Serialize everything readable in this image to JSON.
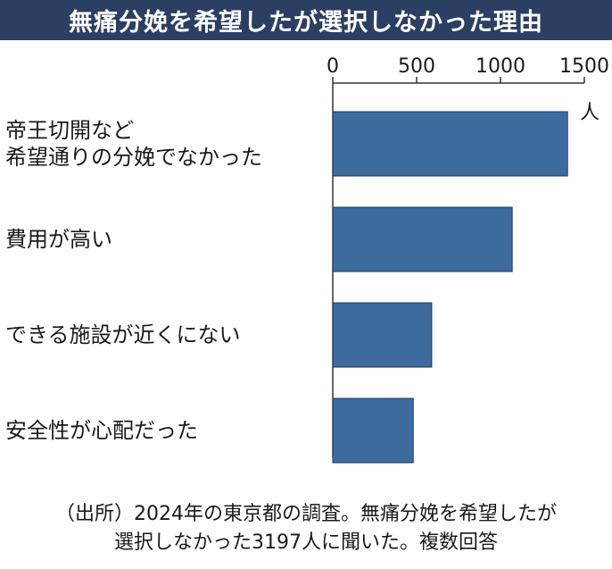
{
  "title": "無痛分娩を希望したが選択しなかった理由",
  "unit": "人",
  "footer": {
    "line1": "（出所）2024年の東京都の調査。無痛分娩を希望したが",
    "line2": "選択しなかった3197人に聞いた。複数回答"
  },
  "chart_data": {
    "type": "bar",
    "orientation": "horizontal",
    "title": "無痛分娩を希望したが選択しなかった理由",
    "categories": [
      "帝王切開など\n希望通りの分娩でなかった",
      "費用が高い",
      "できる施設が近くにない",
      "安全性が心配だった"
    ],
    "values": [
      1400,
      1070,
      590,
      480
    ],
    "xlim": [
      0,
      1500
    ],
    "xticks": [
      0,
      500,
      1000,
      1500
    ],
    "tick_labels": [
      "0",
      "500",
      "1000",
      "1500"
    ],
    "xlabel": "人",
    "axis_position": "top",
    "bar_color": "#3d6b9e",
    "grid": false,
    "legend": "none"
  }
}
